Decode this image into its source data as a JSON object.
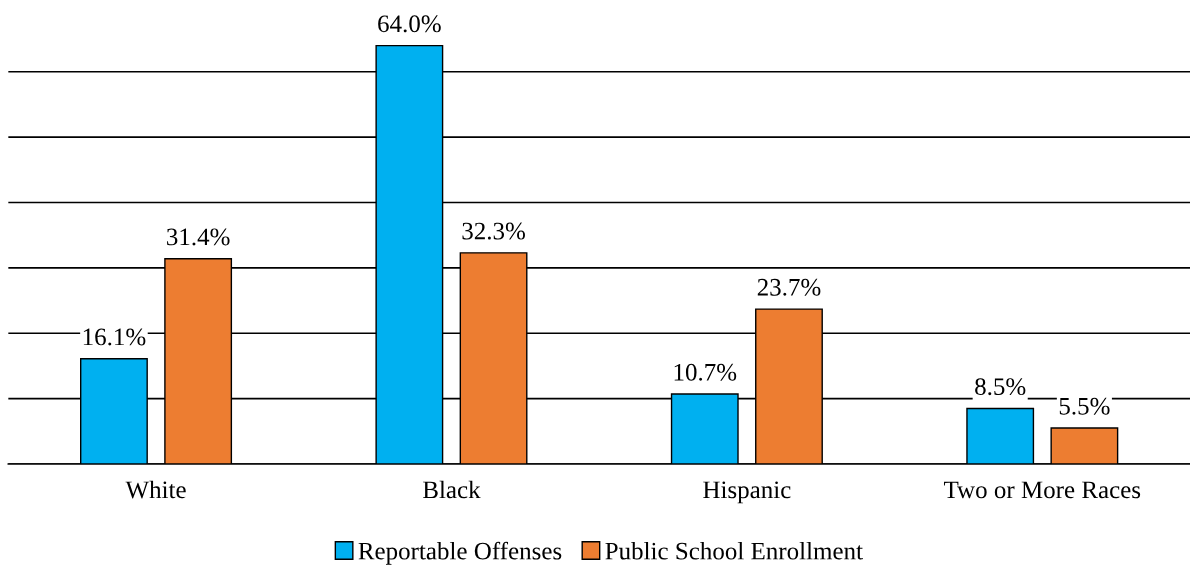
{
  "chart_data": {
    "type": "bar",
    "categories": [
      "White",
      "Black",
      "Hispanic",
      "Two or More Races"
    ],
    "series": [
      {
        "name": "Reportable Offenses",
        "color": "#00b0f0",
        "values": [
          16.1,
          64.0,
          10.7,
          8.5
        ],
        "value_labels": [
          "16.1%",
          "64.0%",
          "10.7%",
          "8.5%"
        ]
      },
      {
        "name": "Public School Enrollment",
        "color": "#ed7d31",
        "values": [
          31.4,
          32.3,
          23.7,
          5.5
        ],
        "value_labels": [
          "31.4%",
          "32.3%",
          "23.7%",
          "5.5%"
        ]
      }
    ],
    "grid": "y",
    "tick_labels": "x",
    "legend": "bottom"
  }
}
